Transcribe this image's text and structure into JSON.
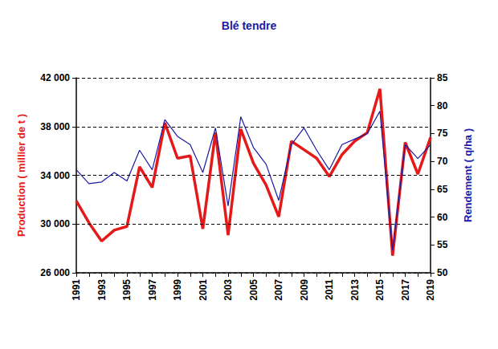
{
  "chart_data": {
    "type": "line",
    "title": "Blé tendre",
    "ylabel": "Production ( millier de t )",
    "y2label": "Rendement ( q/ha )",
    "categories": [
      "1991",
      null,
      "1993",
      null,
      "1995",
      null,
      "1997",
      null,
      "1999",
      null,
      "2001",
      null,
      "2003",
      null,
      "2005",
      null,
      "2007",
      null,
      "2009",
      null,
      "2011",
      null,
      "2013",
      null,
      "2015",
      null,
      "2017",
      null,
      "2019"
    ],
    "series": [
      {
        "color": "#e41a1a",
        "values": [
          31900,
          30100,
          28600,
          29500,
          29800,
          34700,
          33000,
          38300,
          35400,
          35600,
          29600,
          37500,
          29100,
          37800,
          35000,
          33200,
          30600,
          36800,
          36100,
          35400,
          33900,
          35700,
          36800,
          37500,
          41100,
          27400,
          36700,
          34100,
          37100
        ]
      },
      {
        "color": "#1a1aa6",
        "axis": "y2",
        "values": [
          68.5,
          66,
          66.3,
          68,
          66.5,
          72,
          68.5,
          77.5,
          74.5,
          73,
          68,
          76,
          62,
          78,
          72.5,
          69.5,
          63,
          73,
          76,
          72,
          68.5,
          73,
          74,
          75,
          79,
          54,
          73,
          70.5,
          73
        ]
      }
    ],
    "ylim": [
      26000,
      42000
    ],
    "yticks": [
      {
        "value": 26000,
        "label": "26 000"
      },
      {
        "value": 30000,
        "label": "30 000"
      },
      {
        "value": 34000,
        "label": "34 000"
      },
      {
        "value": 38000,
        "label": "38 000"
      },
      {
        "value": 42000,
        "label": "42 000"
      }
    ],
    "y2lim": [
      50,
      85
    ],
    "y2ticks": [
      50,
      55,
      60,
      65,
      70,
      75,
      80,
      85
    ],
    "grid": true
  }
}
